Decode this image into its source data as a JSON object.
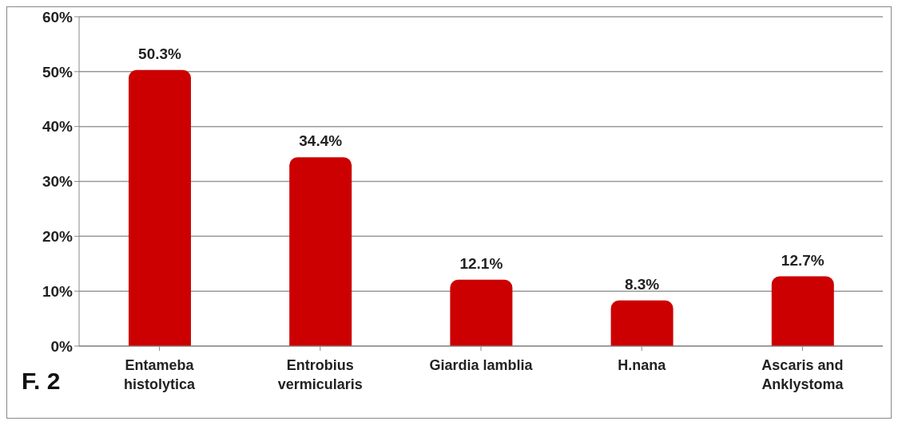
{
  "chart_data": {
    "type": "bar",
    "categories": [
      "Entameba histolytica",
      "Entrobius vermicularis",
      "Giardia lamblia",
      "H.nana",
      "Ascaris and Anklystoma"
    ],
    "values": [
      50.3,
      34.4,
      12.1,
      8.3,
      12.7
    ],
    "value_labels": [
      "50.3%",
      "34.4%",
      "12.1%",
      "8.3%",
      "12.7%"
    ],
    "color": "#cc0000",
    "ylim": [
      0,
      60
    ],
    "yticks": [
      {
        "value": 0,
        "label": "0%"
      },
      {
        "value": 10,
        "label": "10%"
      },
      {
        "value": 20,
        "label": "20%"
      },
      {
        "value": 30,
        "label": "30%"
      },
      {
        "value": 40,
        "label": "40%"
      },
      {
        "value": 50,
        "label": "50%"
      },
      {
        "value": 60,
        "label": "60%"
      }
    ],
    "grid": "y",
    "annotations": [
      "F. 2"
    ]
  }
}
